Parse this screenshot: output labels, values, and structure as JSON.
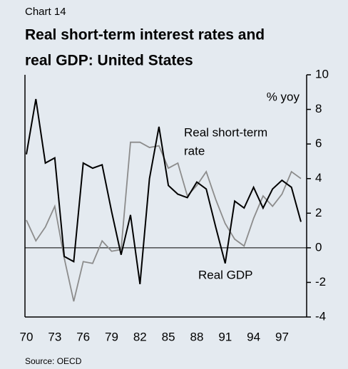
{
  "chart_data": {
    "type": "line",
    "kicker": "Chart 14",
    "title": [
      "Real short-term interest rates and",
      "real GDP: United States"
    ],
    "y_unit": "% yoy",
    "source": "Source: OECD",
    "categories": [
      "70",
      null,
      null,
      "73",
      null,
      null,
      "76",
      null,
      null,
      "79",
      null,
      null,
      "82",
      null,
      null,
      "85",
      null,
      null,
      "88",
      null,
      null,
      "91",
      null,
      null,
      "94",
      null,
      null,
      "97",
      null,
      null
    ],
    "series": [
      {
        "name": "Real short-term rate",
        "label_lines": [
          "Real short-term",
          "rate"
        ],
        "color": "#8c8c8c",
        "values": [
          1.6,
          0.4,
          1.2,
          2.4,
          -0.6,
          -3.1,
          -0.8,
          -0.9,
          0.4,
          -0.2,
          -0.1,
          6.1,
          6.1,
          5.8,
          5.9,
          4.6,
          4.9,
          3.0,
          3.6,
          4.4,
          2.8,
          1.4,
          0.5,
          0.1,
          1.7,
          3.0,
          2.4,
          3.1,
          4.4,
          4.0
        ]
      },
      {
        "name": "Real GDP",
        "label_lines": [
          "Real GDP"
        ],
        "color": "#000000",
        "values": [
          5.4,
          8.6,
          4.9,
          5.2,
          -0.5,
          -0.8,
          4.9,
          4.6,
          4.8,
          2.1,
          -0.4,
          1.9,
          -2.1,
          4.0,
          7.0,
          3.6,
          3.1,
          2.9,
          3.8,
          3.4,
          1.2,
          -0.9,
          2.7,
          2.3,
          3.5,
          2.3,
          3.4,
          3.9,
          3.5,
          1.5
        ]
      }
    ],
    "ylim": [
      -4,
      10
    ],
    "yticks": [
      10,
      8,
      6,
      4,
      2,
      0,
      -2,
      -4
    ],
    "zero_line": true
  }
}
